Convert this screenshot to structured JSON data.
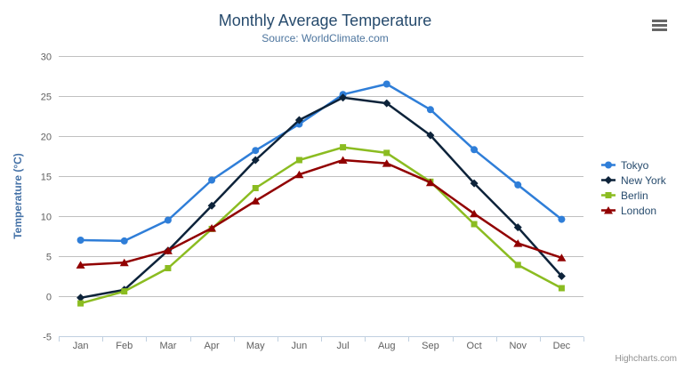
{
  "chart_data": {
    "type": "line",
    "title": "Monthly Average Temperature",
    "subtitle": "Source: WorldClimate.com",
    "categories": [
      "Jan",
      "Feb",
      "Mar",
      "Apr",
      "May",
      "Jun",
      "Jul",
      "Aug",
      "Sep",
      "Oct",
      "Nov",
      "Dec"
    ],
    "series": [
      {
        "name": "Tokyo",
        "color": "#2f7ed8",
        "marker": "circle",
        "values": [
          7.0,
          6.9,
          9.5,
          14.5,
          18.2,
          21.5,
          25.2,
          26.5,
          23.3,
          18.3,
          13.9,
          9.6
        ]
      },
      {
        "name": "New York",
        "color": "#0d233a",
        "marker": "diamond",
        "values": [
          -0.2,
          0.8,
          5.7,
          11.3,
          17.0,
          22.0,
          24.8,
          24.1,
          20.1,
          14.1,
          8.6,
          2.5
        ]
      },
      {
        "name": "Berlin",
        "color": "#8bbc21",
        "marker": "square",
        "values": [
          -0.9,
          0.6,
          3.5,
          8.4,
          13.5,
          17.0,
          18.6,
          17.9,
          14.3,
          9.0,
          3.9,
          1.0
        ]
      },
      {
        "name": "London",
        "color": "#910000",
        "marker": "triangle",
        "values": [
          3.9,
          4.2,
          5.7,
          8.5,
          11.9,
          15.2,
          17.0,
          16.6,
          14.2,
          10.3,
          6.6,
          4.8
        ]
      }
    ],
    "xlabel": "",
    "ylabel": "Temperature (°C)",
    "ylim": [
      -5,
      30
    ],
    "ytick_step": 5,
    "yticks": [
      -5,
      0,
      5,
      10,
      15,
      20,
      25,
      30
    ],
    "grid": true,
    "legend_position": "right"
  },
  "colors": {
    "grid_line": "#c0c0c0",
    "axis_line": "#c0d0e0",
    "tick_label": "#606060",
    "y_axis_title": "#4572a7",
    "title": "#274b6d",
    "subtitle": "#4d759e",
    "legend_text": "#274b6d",
    "credits_text": "#909090",
    "menu_icon": "#666666"
  },
  "credits": {
    "label": "Highcharts.com"
  }
}
